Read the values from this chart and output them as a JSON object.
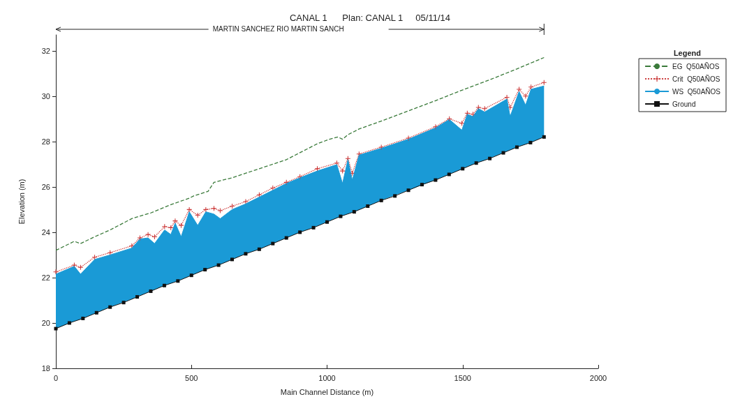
{
  "chart_data": {
    "type": "line",
    "title": "CANAL 1      Plan: CANAL 1     05/11/14",
    "subtitle": "MARTIN SANCHEZ RIO MARTIN SANCH",
    "xlabel": "Main Channel Distance (m)",
    "ylabel": "Elevation (m)",
    "legend_title": "Legend",
    "legend": "top right",
    "grid": false,
    "xlim": [
      0,
      2000
    ],
    "xticks": [
      0,
      500,
      1000,
      1500,
      2000
    ],
    "ylim": [
      18,
      32.7
    ],
    "yticks": [
      18,
      20,
      22,
      24,
      26,
      28,
      30,
      32
    ],
    "series": [
      {
        "name": "EG  Q50AÑOS",
        "color": "#3a7a3a",
        "line_style": "dashed",
        "marker": "none",
        "x": [
          0,
          68,
          91,
          143,
          200,
          280,
          350,
          420,
          492,
          508,
          561,
          583,
          650,
          750,
          850,
          964,
          1009,
          1040,
          1057,
          1077,
          1118,
          1200,
          1300,
          1400,
          1484,
          1606,
          1700,
          1800
        ],
        "values": [
          23.2,
          23.6,
          23.5,
          23.8,
          24.1,
          24.6,
          24.85,
          25.2,
          25.5,
          25.6,
          25.8,
          26.2,
          26.4,
          26.8,
          27.2,
          27.9,
          28.1,
          28.2,
          28.1,
          28.3,
          28.55,
          28.9,
          29.35,
          29.8,
          30.2,
          30.75,
          31.2,
          31.7
        ]
      },
      {
        "name": "Crit  Q50AÑOS",
        "color": "#cc3a3a",
        "line_style": "dotted",
        "marker": "cross",
        "x": [
          0,
          68,
          91,
          143,
          200,
          280,
          310,
          340,
          364,
          401,
          424,
          440,
          462,
          492,
          523,
          553,
          583,
          606,
          650,
          700,
          750,
          800,
          850,
          900,
          964,
          1036,
          1057,
          1077,
          1093,
          1118,
          1200,
          1300,
          1400,
          1451,
          1497,
          1517,
          1538,
          1558,
          1581,
          1663,
          1675,
          1708,
          1732,
          1752,
          1800
        ],
        "values": [
          22.25,
          22.55,
          22.45,
          22.9,
          23.1,
          23.4,
          23.75,
          23.9,
          23.8,
          24.25,
          24.2,
          24.5,
          24.3,
          25.0,
          24.75,
          25.0,
          25.05,
          24.95,
          25.15,
          25.35,
          25.65,
          25.95,
          26.2,
          26.45,
          26.8,
          27.05,
          26.7,
          27.25,
          26.6,
          27.45,
          27.75,
          28.15,
          28.65,
          29.0,
          28.8,
          29.25,
          29.2,
          29.5,
          29.45,
          29.95,
          29.5,
          30.3,
          30.0,
          30.4,
          30.6
        ]
      },
      {
        "name": "WS  Q50AÑOS",
        "type": "area",
        "color": "#1a9ad6",
        "line_style": "solid",
        "marker": "none",
        "x": [
          0,
          68,
          91,
          143,
          200,
          280,
          310,
          340,
          364,
          401,
          424,
          440,
          462,
          492,
          523,
          553,
          583,
          606,
          650,
          700,
          750,
          800,
          850,
          900,
          964,
          1036,
          1057,
          1077,
          1093,
          1118,
          1200,
          1300,
          1400,
          1451,
          1497,
          1517,
          1538,
          1558,
          1581,
          1663,
          1675,
          1708,
          1732,
          1752,
          1800
        ],
        "values": [
          22.15,
          22.5,
          22.15,
          22.8,
          23.0,
          23.3,
          23.7,
          23.75,
          23.5,
          24.1,
          23.9,
          24.4,
          23.8,
          24.9,
          24.3,
          24.9,
          24.8,
          24.6,
          25.0,
          25.25,
          25.55,
          25.85,
          26.15,
          26.4,
          26.7,
          26.98,
          26.15,
          27.2,
          26.3,
          27.4,
          27.7,
          28.1,
          28.6,
          28.97,
          28.5,
          29.2,
          29.1,
          29.45,
          29.3,
          29.87,
          29.1,
          30.2,
          29.6,
          30.3,
          30.45
        ]
      },
      {
        "name": "Ground",
        "color": "#111111",
        "line_style": "solid",
        "marker": "square",
        "x": [
          0,
          50,
          100,
          150,
          200,
          250,
          300,
          350,
          400,
          450,
          500,
          550,
          600,
          650,
          700,
          750,
          800,
          850,
          900,
          950,
          1000,
          1050,
          1100,
          1150,
          1200,
          1250,
          1300,
          1350,
          1400,
          1450,
          1500,
          1550,
          1600,
          1650,
          1700,
          1750,
          1800
        ],
        "values": [
          19.75,
          20.0,
          20.2,
          20.45,
          20.7,
          20.9,
          21.15,
          21.4,
          21.65,
          21.85,
          22.1,
          22.35,
          22.55,
          22.8,
          23.05,
          23.25,
          23.5,
          23.75,
          24.0,
          24.2,
          24.45,
          24.7,
          24.9,
          25.15,
          25.4,
          25.6,
          25.85,
          26.1,
          26.3,
          26.55,
          26.8,
          27.05,
          27.25,
          27.5,
          27.75,
          27.95,
          28.2
        ]
      }
    ]
  }
}
